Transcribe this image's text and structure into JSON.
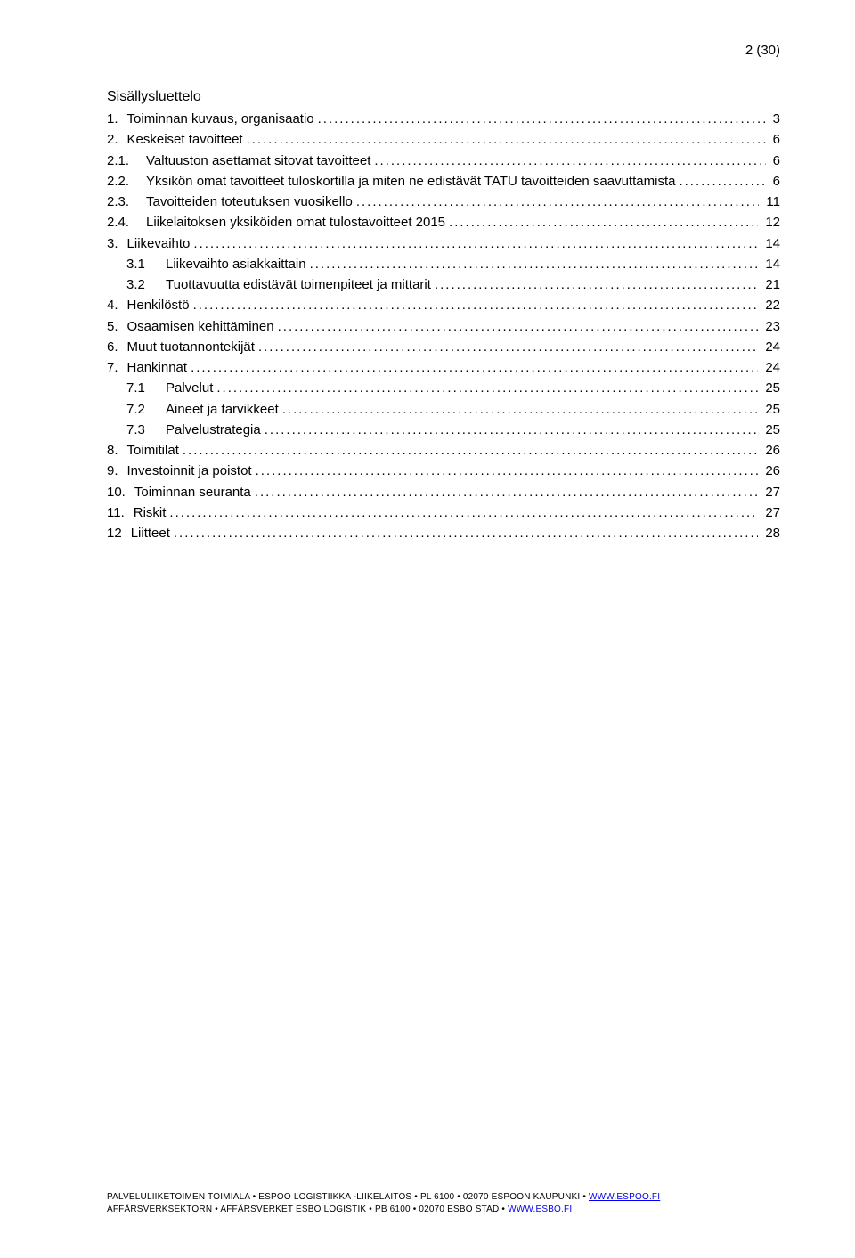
{
  "page_number": "2 (30)",
  "heading": "Sisällysluettelo",
  "toc": [
    {
      "num": "1.",
      "label": "Toiminnan kuvaus, organisaatio",
      "page": "3",
      "indent": false,
      "numWide": false
    },
    {
      "num": "2.",
      "label": "Keskeiset tavoitteet",
      "page": "6",
      "indent": false,
      "numWide": false
    },
    {
      "num": "2.1.",
      "label": "Valtuuston asettamat sitovat tavoitteet",
      "page": "6",
      "indent": false,
      "numWide": true
    },
    {
      "num": "2.2.",
      "label": "Yksikön omat tavoitteet tuloskortilla ja miten ne edistävät TATU tavoitteiden saavuttamista",
      "page": "6",
      "indent": false,
      "numWide": true
    },
    {
      "num": "2.3.",
      "label": "Tavoitteiden toteutuksen vuosikello",
      "page": "11",
      "indent": false,
      "numWide": true
    },
    {
      "num": "2.4.",
      "label": " Liikelaitoksen yksiköiden omat tulostavoitteet 2015",
      "page": "12",
      "indent": false,
      "numWide": true
    },
    {
      "num": "3.",
      "label": "Liikevaihto",
      "page": "14",
      "indent": false,
      "numWide": false
    },
    {
      "num": "3.1",
      "label": "Liikevaihto asiakkaittain",
      "page": "14",
      "indent": true,
      "numWide": true
    },
    {
      "num": "3.2",
      "label": "Tuottavuutta edistävät toimenpiteet ja mittarit",
      "page": "21",
      "indent": true,
      "numWide": true
    },
    {
      "num": "4.",
      "label": "Henkilöstö",
      "page": "22",
      "indent": false,
      "numWide": false
    },
    {
      "num": "5.",
      "label": "Osaamisen kehittäminen",
      "page": "23",
      "indent": false,
      "numWide": false
    },
    {
      "num": "6.",
      "label": "Muut tuotannontekijät",
      "page": "24",
      "indent": false,
      "numWide": false
    },
    {
      "num": "7.",
      "label": "Hankinnat",
      "page": "24",
      "indent": false,
      "numWide": false
    },
    {
      "num": "7.1",
      "label": " Palvelut",
      "page": "25",
      "indent": true,
      "numWide": true
    },
    {
      "num": "7.2",
      "label": " Aineet ja tarvikkeet",
      "page": "25",
      "indent": true,
      "numWide": true
    },
    {
      "num": "7.3",
      "label": " Palvelustrategia",
      "page": "25",
      "indent": true,
      "numWide": true
    },
    {
      "num": "8.",
      "label": "Toimitilat",
      "page": "26",
      "indent": false,
      "numWide": false
    },
    {
      "num": "9.",
      "label": "Investoinnit ja poistot",
      "page": "26",
      "indent": false,
      "numWide": false
    },
    {
      "num": "10.",
      "label": "Toiminnan seuranta",
      "page": "27",
      "indent": false,
      "numWide": false
    },
    {
      "num": "11.",
      "label": "Riskit",
      "page": "27",
      "indent": false,
      "numWide": false
    },
    {
      "num": "12",
      "label": "Liitteet",
      "page": "28",
      "indent": false,
      "numWide": false
    }
  ],
  "footer": {
    "line1_pre": "PALVELULIIKETOIMEN TOIMIALA • ESPOO LOGISTIIKKA -LIIKELAITOS • PL 6100 • 02070 ESPOON KAUPUNKI • ",
    "line1_link": "WWW.ESPOO.FI",
    "line2_pre": "AFFÄRSVERKSEKTORN • AFFÄRSVERKET ESBO LOGISTIK • PB 6100 • 02070 ESBO STAD • ",
    "line2_link": "WWW.ESBO.FI"
  }
}
